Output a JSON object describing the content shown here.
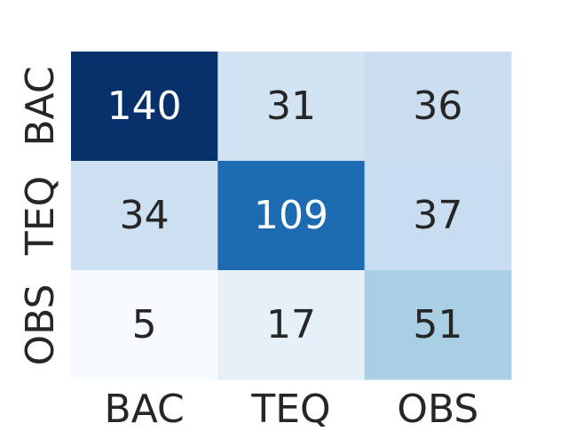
{
  "chart_data": {
    "type": "heatmap",
    "title": "",
    "xlabel": "",
    "ylabel": "",
    "x_categories": [
      "BAC",
      "TEQ",
      "OBS"
    ],
    "y_categories": [
      "BAC",
      "TEQ",
      "OBS"
    ],
    "values": [
      [
        140,
        31,
        36
      ],
      [
        34,
        109,
        37
      ],
      [
        5,
        17,
        51
      ]
    ],
    "colormap": "Blues",
    "vmin": 5,
    "vmax": 140,
    "colorbar": false,
    "annotations": true,
    "dark_text_color": "#262626",
    "light_text_color": "#ffffff"
  }
}
